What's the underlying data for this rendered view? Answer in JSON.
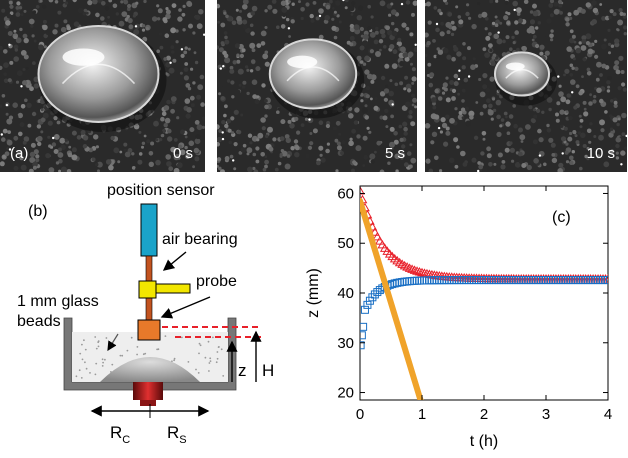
{
  "panel_a": {
    "label": "(a)",
    "frames": [
      {
        "time": "0 s",
        "droplet_size": 1.0
      },
      {
        "time": "5 s",
        "droplet_size": 0.72
      },
      {
        "time": "10 s",
        "droplet_size": 0.45
      }
    ]
  },
  "panel_b": {
    "label": "(b)",
    "position_sensor": "position sensor",
    "air_bearing": "air bearing",
    "probe": "probe",
    "beads_line1": "1 mm glass",
    "beads_line2": "beads",
    "z": "z",
    "H": "H",
    "Rc_base": "R",
    "Rc_sub": "C",
    "Rs_base": "R",
    "Rs_sub": "S",
    "colors": {
      "sensor": "#1aa3c9",
      "rod": "#c2531f",
      "bearing": "#f2e600",
      "probe_block": "#e8792a",
      "heater": "#c41e1e",
      "dashed": "#e8202a",
      "box": "#777777"
    }
  },
  "chart_data": {
    "type": "scatter",
    "label": "(c)",
    "xlabel": "t (h)",
    "ylabel": "z (mm)",
    "xlim": [
      0,
      4
    ],
    "ylim": [
      18.5,
      61.5
    ],
    "xticks": [
      "0",
      "1",
      "2",
      "3",
      "4"
    ],
    "yticks": [
      "20",
      "30",
      "40",
      "50",
      "60"
    ],
    "series": [
      {
        "marker": "triangle",
        "color": "#e8202a",
        "tau": 0.38,
        "start": 60.5,
        "end": 42.8,
        "x_start": 0.0,
        "x_end": 4.0,
        "step": 0.04
      },
      {
        "marker": "square",
        "color": "#1a6fc4",
        "tau": 0.22,
        "start": 34,
        "end": 42.6,
        "x_start": 0.08,
        "x_end": 4.0,
        "step": 0.04,
        "early_points": [
          [
            0.01,
            29.5
          ],
          [
            0.03,
            31.5
          ],
          [
            0.05,
            33.2
          ]
        ]
      },
      {
        "marker": "thick-line",
        "color": "#f0a32a",
        "points": [
          [
            0.0,
            58.5
          ],
          [
            1.0,
            17.5
          ]
        ]
      }
    ]
  }
}
